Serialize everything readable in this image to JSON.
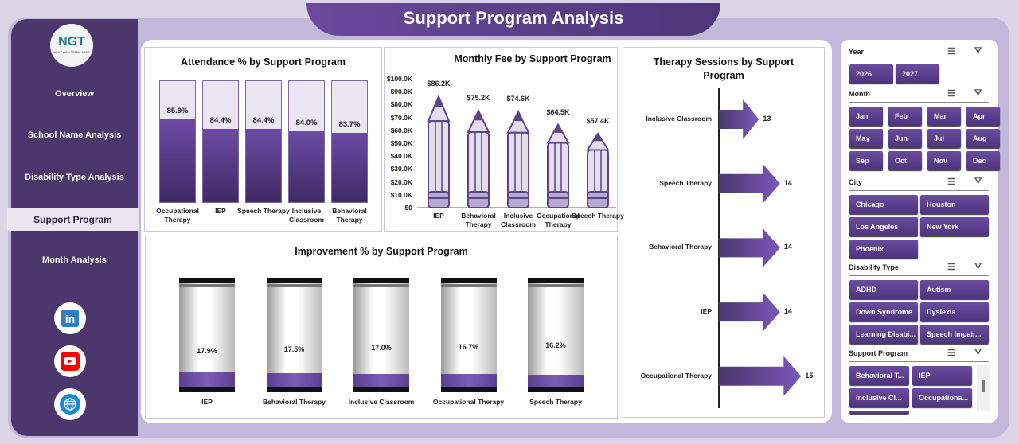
{
  "header": {
    "title": "Support Program Analysis"
  },
  "logo": {
    "text": "NGT",
    "subtext": "NEXT GEN TEMPLATES"
  },
  "sidebar": {
    "items": [
      {
        "label": "Overview"
      },
      {
        "label": "School Name Analysis"
      },
      {
        "label": "Disability Type Analysis"
      },
      {
        "label": "Support Program",
        "active": true
      },
      {
        "label": "Month Analysis"
      }
    ],
    "social": [
      "linkedin-icon",
      "youtube-icon",
      "globe-icon"
    ]
  },
  "colors": {
    "accent": "#5b3f8c",
    "sidebar": "#4b376b",
    "light": "#e8e3f1"
  },
  "chart_data": [
    {
      "type": "bar",
      "title": "Attendance % by Support Program",
      "categories": [
        "Occupational Therapy",
        "IEP",
        "Speech Therapy",
        "Inclusive Classroom",
        "Behavioral Therapy"
      ],
      "values": [
        85.9,
        84.4,
        84.4,
        84.0,
        83.7
      ],
      "labels": [
        "85.9%",
        "84.4%",
        "84.4%",
        "84.0%",
        "83.7%"
      ]
    },
    {
      "type": "bar",
      "title": "Monthly Fee by Support Program",
      "categories": [
        "IEP",
        "Behavioral Therapy",
        "Inclusive Classroom",
        "Occupational Therapy",
        "Speech Therapy"
      ],
      "values": [
        86.2,
        75.2,
        74.6,
        64.5,
        57.4
      ],
      "labels": [
        "$86.2K",
        "$75.2K",
        "$74.6K",
        "$64.5K",
        "$57.4K"
      ],
      "ylim": [
        0,
        100
      ],
      "yticks": [
        "$0",
        "$10.0K",
        "$20.0K",
        "$30.0K",
        "$40.0K",
        "$50.0K",
        "$60.0K",
        "$70.0K",
        "$80.0K",
        "$90.0K",
        "$100.0K"
      ]
    },
    {
      "type": "bar",
      "title": "Improvement % by Support Program",
      "categories": [
        "IEP",
        "Behavioral Therapy",
        "Inclusive Classroom",
        "Occupational Therapy",
        "Speech Therapy"
      ],
      "values": [
        17.9,
        17.5,
        17.0,
        16.7,
        16.2
      ],
      "labels": [
        "17.9%",
        "17.5%",
        "17.0%",
        "16.7%",
        "16.2%"
      ]
    },
    {
      "type": "bar",
      "orientation": "horizontal",
      "title": "Therapy Sessions by Support Program",
      "categories": [
        "Inclusive Classroom",
        "Speech Therapy",
        "Behavioral Therapy",
        "IEP",
        "Occupational Therapy"
      ],
      "values": [
        13,
        14,
        14,
        14,
        15
      ],
      "labels": [
        "13",
        "14",
        "14",
        "14",
        "15"
      ]
    }
  ],
  "slicers": [
    {
      "title": "Year",
      "items": [
        "2026",
        "2027"
      ]
    },
    {
      "title": "Month",
      "items": [
        "Jan",
        "Feb",
        "Mar",
        "Apr",
        "May",
        "Jun",
        "Jul",
        "Aug",
        "Sep",
        "Oct",
        "Nov",
        "Dec"
      ]
    },
    {
      "title": "City",
      "items": [
        "Chicago",
        "Houston",
        "Los Angeles",
        "New York",
        "Phoenix"
      ]
    },
    {
      "title": "Disability Type",
      "items": [
        "ADHD",
        "Autism",
        "Down Syndrome",
        "Dyslexia",
        "Learning Disabi...",
        "Speech Impair..."
      ]
    },
    {
      "title": "Support Program",
      "items": [
        "Behavioral T...",
        "IEP",
        "Inclusive Cl...",
        "Occupationa...",
        ""
      ]
    }
  ]
}
